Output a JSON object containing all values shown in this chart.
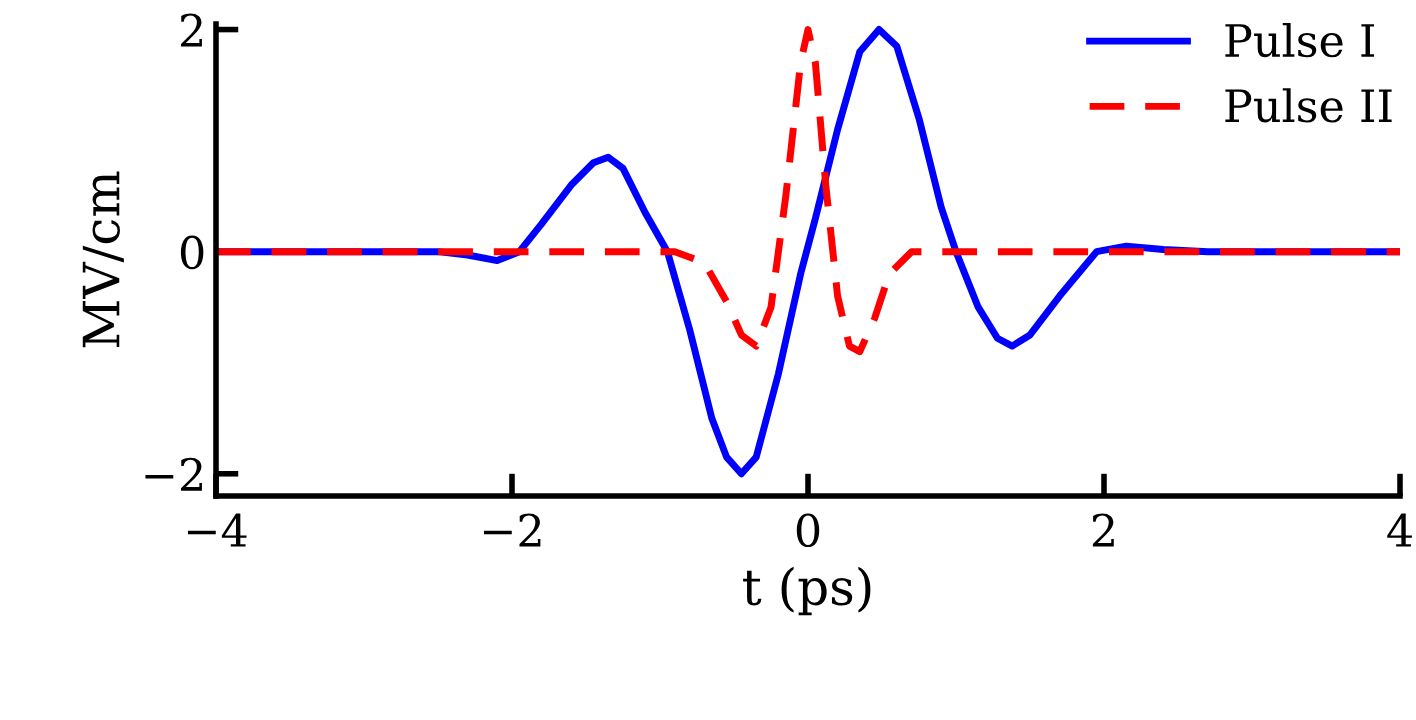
{
  "chart_data": {
    "type": "line",
    "xlabel": "t (ps)",
    "ylabel": "MV/cm",
    "xlim": [
      -4,
      4
    ],
    "ylim": [
      -2.2,
      2.05
    ],
    "xticks": [
      {
        "value": -4,
        "label": "−4"
      },
      {
        "value": -2,
        "label": "−2"
      },
      0,
      2,
      4
    ],
    "yticks": [
      {
        "value": -2,
        "label": "−2"
      },
      0,
      2
    ],
    "grid": false,
    "legend": "top right",
    "marker": "none",
    "series": [
      {
        "name": "Pulse I",
        "color": "#0000ff",
        "line_style": "solid",
        "x": [
          -4,
          -2.5,
          -2.3,
          -2.1,
          -1.95,
          -1.8,
          -1.6,
          -1.45,
          -1.35,
          -1.25,
          -1.1,
          -0.95,
          -0.8,
          -0.65,
          -0.55,
          -0.45,
          -0.35,
          -0.2,
          -0.05,
          0.05,
          0.2,
          0.35,
          0.48,
          0.6,
          0.75,
          0.9,
          1.0,
          1.15,
          1.28,
          1.38,
          1.5,
          1.7,
          1.95,
          2.15,
          2.4,
          2.7,
          4
        ],
        "values": [
          0,
          0,
          -0.03,
          -0.08,
          0,
          0.25,
          0.6,
          0.8,
          0.85,
          0.75,
          0.35,
          0,
          -0.7,
          -1.5,
          -1.85,
          -2,
          -1.85,
          -1.1,
          -0.2,
          0.3,
          1.1,
          1.8,
          2,
          1.85,
          1.2,
          0.4,
          0,
          -0.5,
          -0.78,
          -0.85,
          -0.75,
          -0.4,
          0,
          0.05,
          0.02,
          0,
          0
        ]
      },
      {
        "name": "Pulse II",
        "color": "#ff0000",
        "line_style": "dashed",
        "x": [
          -4,
          -0.9,
          -0.7,
          -0.55,
          -0.45,
          -0.35,
          -0.25,
          -0.15,
          -0.05,
          0,
          0.05,
          0.12,
          0.2,
          0.28,
          0.35,
          0.45,
          0.55,
          0.7,
          0.9,
          4
        ],
        "values": [
          0,
          0,
          -0.1,
          -0.45,
          -0.75,
          -0.85,
          -0.5,
          0.5,
          1.7,
          2.0,
          1.7,
          0.6,
          -0.4,
          -0.85,
          -0.9,
          -0.6,
          -0.2,
          0,
          0,
          0
        ]
      }
    ]
  }
}
